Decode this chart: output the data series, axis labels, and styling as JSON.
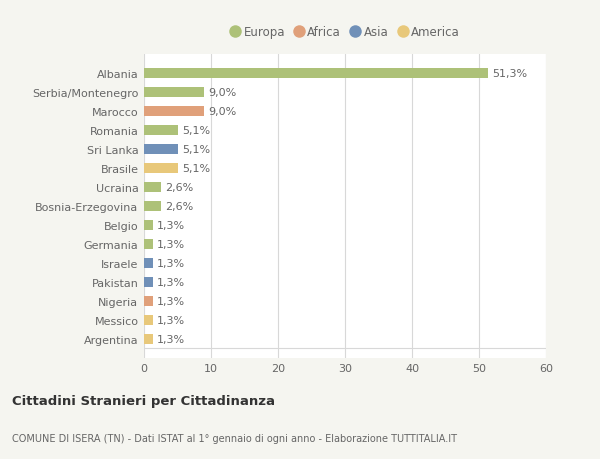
{
  "categories": [
    "Albania",
    "Serbia/Montenegro",
    "Marocco",
    "Romania",
    "Sri Lanka",
    "Brasile",
    "Ucraina",
    "Bosnia-Erzegovina",
    "Belgio",
    "Germania",
    "Israele",
    "Pakistan",
    "Nigeria",
    "Messico",
    "Argentina"
  ],
  "values": [
    51.3,
    9.0,
    9.0,
    5.1,
    5.1,
    5.1,
    2.6,
    2.6,
    1.3,
    1.3,
    1.3,
    1.3,
    1.3,
    1.3,
    1.3
  ],
  "labels": [
    "51,3%",
    "9,0%",
    "9,0%",
    "5,1%",
    "5,1%",
    "5,1%",
    "2,6%",
    "2,6%",
    "1,3%",
    "1,3%",
    "1,3%",
    "1,3%",
    "1,3%",
    "1,3%",
    "1,3%"
  ],
  "colors": [
    "#adc178",
    "#adc178",
    "#e0a07a",
    "#adc178",
    "#7090b8",
    "#e8c87a",
    "#adc178",
    "#adc178",
    "#adc178",
    "#adc178",
    "#7090b8",
    "#7090b8",
    "#e0a07a",
    "#e8c87a",
    "#e8c87a"
  ],
  "legend_labels": [
    "Europa",
    "Africa",
    "Asia",
    "America"
  ],
  "legend_colors": [
    "#adc178",
    "#e0a07a",
    "#7090b8",
    "#e8c87a"
  ],
  "xlim": [
    0,
    60
  ],
  "xticks": [
    0,
    10,
    20,
    30,
    40,
    50,
    60
  ],
  "title": "Cittadini Stranieri per Cittadinanza",
  "subtitle": "COMUNE DI ISERA (TN) - Dati ISTAT al 1° gennaio di ogni anno - Elaborazione TUTTITALIA.IT",
  "background_color": "#f5f5f0",
  "plot_bg_color": "#ffffff",
  "grid_color": "#d8d8d8",
  "label_fontsize": 8,
  "tick_fontsize": 8,
  "bar_height": 0.55
}
